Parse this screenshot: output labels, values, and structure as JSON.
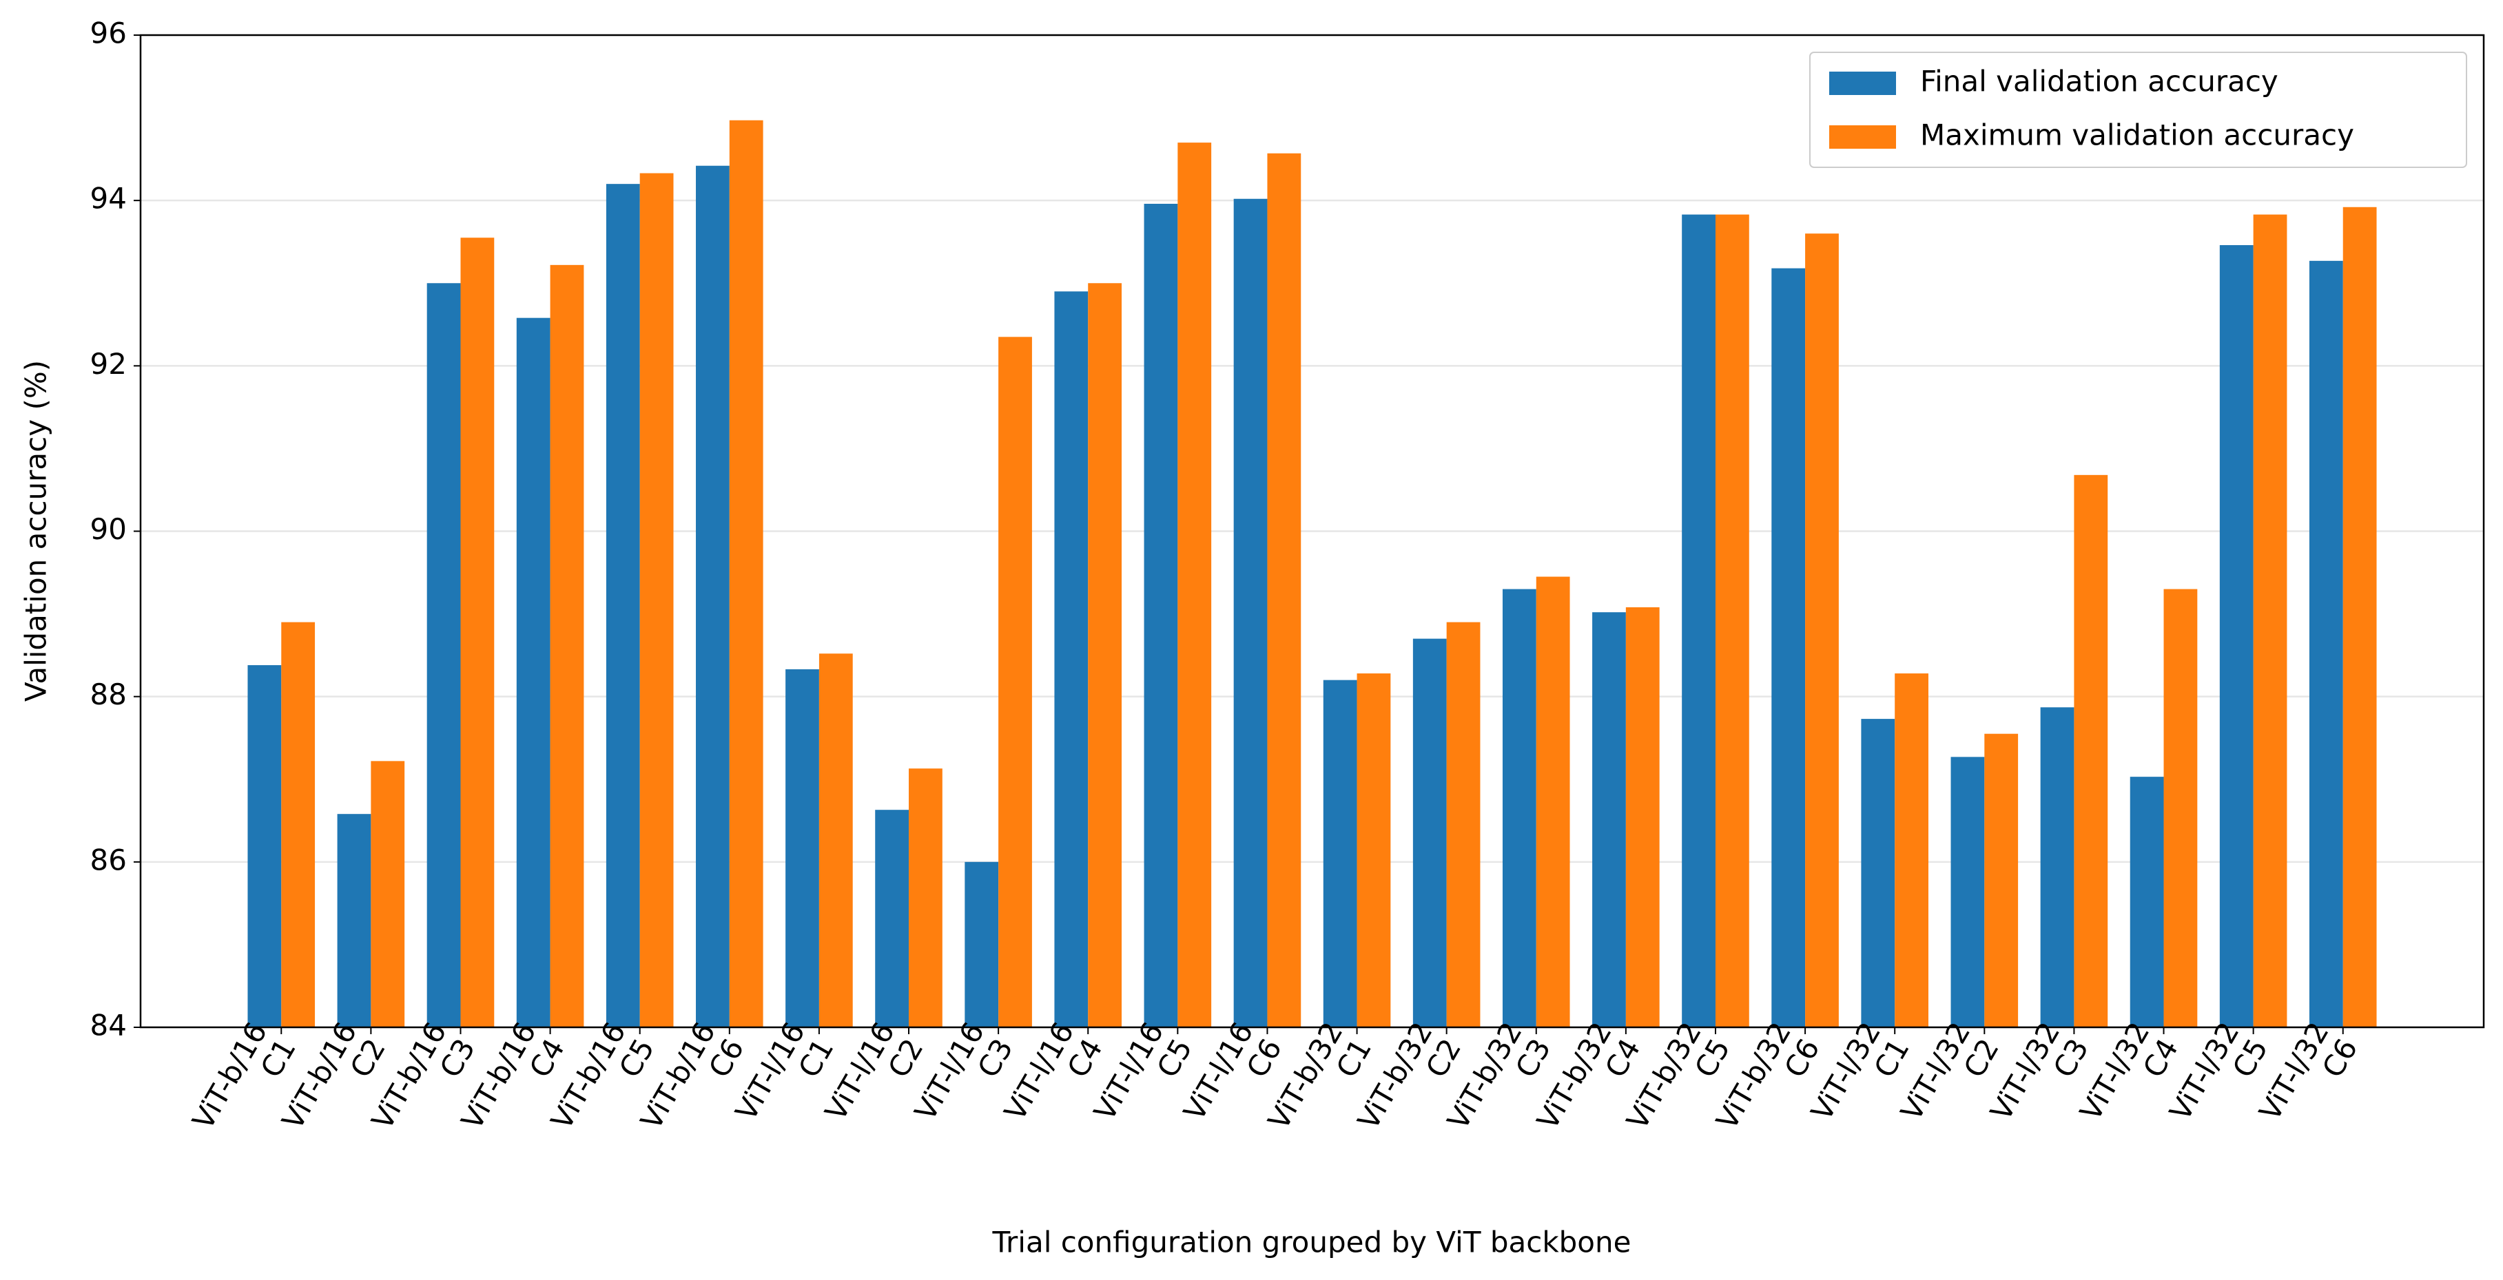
{
  "chart_data": {
    "type": "bar",
    "x_label": "Trial configuration grouped by ViT backbone",
    "y_label": "Validation accuracy (%)",
    "categories": [
      [
        "ViT-b/16",
        "C1"
      ],
      [
        "ViT-b/16",
        "C2"
      ],
      [
        "ViT-b/16",
        "C3"
      ],
      [
        "ViT-b/16",
        "C4"
      ],
      [
        "ViT-b/16",
        "C5"
      ],
      [
        "ViT-b/16",
        "C6"
      ],
      [
        "ViT-l/16",
        "C1"
      ],
      [
        "ViT-l/16",
        "C2"
      ],
      [
        "ViT-l/16",
        "C3"
      ],
      [
        "ViT-l/16",
        "C4"
      ],
      [
        "ViT-l/16",
        "C5"
      ],
      [
        "ViT-l/16",
        "C6"
      ],
      [
        "ViT-b/32",
        "C1"
      ],
      [
        "ViT-b/32",
        "C2"
      ],
      [
        "ViT-b/32",
        "C3"
      ],
      [
        "ViT-b/32",
        "C4"
      ],
      [
        "ViT-b/32",
        "C5"
      ],
      [
        "ViT-b/32",
        "C6"
      ],
      [
        "ViT-l/32",
        "C1"
      ],
      [
        "ViT-l/32",
        "C2"
      ],
      [
        "ViT-l/32",
        "C3"
      ],
      [
        "ViT-l/32",
        "C4"
      ],
      [
        "ViT-l/32",
        "C5"
      ],
      [
        "ViT-l/32",
        "C6"
      ]
    ],
    "series": [
      {
        "name": "Final validation accuracy",
        "color": "#1f77b4",
        "values": [
          88.38,
          86.58,
          93.0,
          92.58,
          94.2,
          94.42,
          88.33,
          86.63,
          86.0,
          92.9,
          93.96,
          94.02,
          88.2,
          88.7,
          89.3,
          89.02,
          93.83,
          93.18,
          87.73,
          87.27,
          87.87,
          87.03,
          93.46,
          93.27
        ]
      },
      {
        "name": "Maximum validation accuracy",
        "color": "#ff7f0e",
        "values": [
          88.9,
          87.22,
          93.55,
          93.22,
          94.33,
          94.97,
          88.52,
          87.13,
          92.35,
          93.0,
          94.7,
          94.57,
          88.28,
          88.9,
          89.45,
          89.08,
          93.83,
          93.6,
          88.28,
          87.55,
          90.68,
          89.3,
          93.83,
          93.92
        ]
      }
    ],
    "ylim": [
      84,
      96
    ],
    "yticks": [
      84,
      86,
      88,
      90,
      92,
      94,
      96
    ],
    "grid": true,
    "legend": "upper right"
  }
}
